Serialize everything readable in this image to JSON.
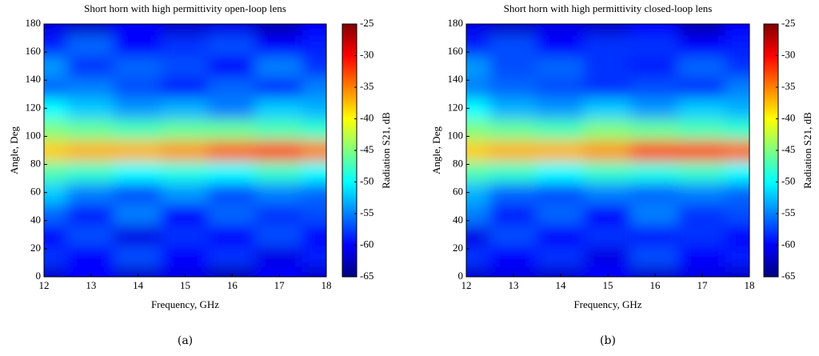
{
  "chart_data": [
    {
      "type": "heatmap",
      "title": "Short horn with high permittivity open-loop lens",
      "xlabel": "Frequency, GHz",
      "ylabel": "Angle, Deg",
      "colorbar_label": "Radiation S21, dB",
      "caption": "(a)",
      "x": [
        12,
        13,
        14,
        15,
        16,
        17,
        18
      ],
      "y": [
        0,
        15,
        30,
        45,
        60,
        75,
        90,
        105,
        120,
        135,
        150,
        165,
        180
      ],
      "z": [
        [
          -62,
          -60,
          -62,
          -61,
          -63,
          -60,
          -62
        ],
        [
          -58,
          -60,
          -57,
          -60,
          -58,
          -61,
          -59
        ],
        [
          -60,
          -57,
          -61,
          -58,
          -60,
          -57,
          -60
        ],
        [
          -56,
          -59,
          -55,
          -60,
          -56,
          -58,
          -57
        ],
        [
          -52,
          -55,
          -57,
          -54,
          -57,
          -55,
          -56
        ],
        [
          -47,
          -48,
          -50,
          -49,
          -50,
          -48,
          -50
        ],
        [
          -38,
          -37,
          -37,
          -36,
          -34,
          -33,
          -35
        ],
        [
          -45,
          -46,
          -47,
          -46,
          -46,
          -47,
          -48
        ],
        [
          -50,
          -52,
          -54,
          -53,
          -55,
          -52,
          -53
        ],
        [
          -56,
          -55,
          -57,
          -59,
          -56,
          -58,
          -55
        ],
        [
          -54,
          -58,
          -56,
          -57,
          -60,
          -55,
          -58
        ],
        [
          -59,
          -56,
          -60,
          -58,
          -57,
          -60,
          -59
        ],
        [
          -61,
          -62,
          -60,
          -62,
          -61,
          -63,
          -60
        ]
      ],
      "xlim": [
        12,
        18
      ],
      "ylim": [
        0,
        180
      ],
      "xticks": [
        12,
        13,
        14,
        15,
        16,
        17,
        18
      ],
      "yticks": [
        0,
        20,
        40,
        60,
        80,
        100,
        120,
        140,
        160,
        180
      ],
      "clim": [
        -65,
        -25
      ],
      "cticks": [
        -25,
        -30,
        -35,
        -40,
        -45,
        -50,
        -55,
        -60,
        -65
      ],
      "colormap": "jet"
    },
    {
      "type": "heatmap",
      "title": "Short horn with high permittivity closed-loop lens",
      "xlabel": "Frequency, GHz",
      "ylabel": "Angle, Deg",
      "colorbar_label": "Radiation S21, dB",
      "caption": "(b)",
      "x": [
        12,
        13,
        14,
        15,
        16,
        17,
        18
      ],
      "y": [
        0,
        15,
        30,
        45,
        60,
        75,
        90,
        105,
        120,
        135,
        150,
        165,
        180
      ],
      "z": [
        [
          -62,
          -61,
          -62,
          -60,
          -62,
          -61,
          -62
        ],
        [
          -58,
          -60,
          -58,
          -61,
          -57,
          -60,
          -59
        ],
        [
          -61,
          -57,
          -60,
          -58,
          -59,
          -58,
          -60
        ],
        [
          -55,
          -59,
          -56,
          -60,
          -55,
          -58,
          -57
        ],
        [
          -53,
          -56,
          -57,
          -55,
          -56,
          -55,
          -56
        ],
        [
          -47,
          -48,
          -50,
          -48,
          -49,
          -48,
          -50
        ],
        [
          -38,
          -37,
          -37,
          -36,
          -33,
          -33,
          -34
        ],
        [
          -45,
          -46,
          -47,
          -45,
          -46,
          -47,
          -48
        ],
        [
          -50,
          -53,
          -54,
          -52,
          -54,
          -52,
          -53
        ],
        [
          -55,
          -56,
          -57,
          -58,
          -57,
          -58,
          -55
        ],
        [
          -54,
          -57,
          -56,
          -58,
          -59,
          -56,
          -58
        ],
        [
          -59,
          -57,
          -60,
          -58,
          -58,
          -60,
          -59
        ],
        [
          -61,
          -62,
          -61,
          -62,
          -60,
          -63,
          -60
        ]
      ],
      "xlim": [
        12,
        18
      ],
      "ylim": [
        0,
        180
      ],
      "xticks": [
        12,
        13,
        14,
        15,
        16,
        17,
        18
      ],
      "yticks": [
        0,
        20,
        40,
        60,
        80,
        100,
        120,
        140,
        160,
        180
      ],
      "clim": [
        -65,
        -25
      ],
      "cticks": [
        -25,
        -30,
        -35,
        -40,
        -45,
        -50,
        -55,
        -60,
        -65
      ],
      "colormap": "jet"
    }
  ]
}
